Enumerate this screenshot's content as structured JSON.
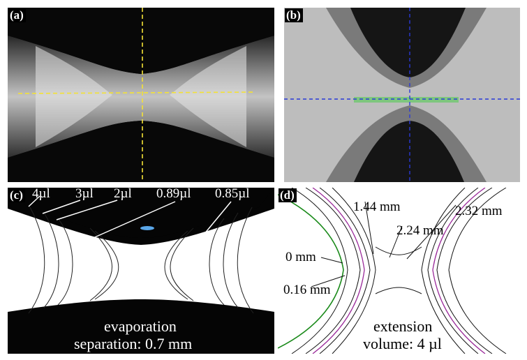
{
  "panels": {
    "a": {
      "tag": "(a)",
      "crosshair_color": "#f4e236"
    },
    "b": {
      "tag": "(b)",
      "crosshair_color": "#2a3ad8"
    },
    "c": {
      "tag": "(c)",
      "volume_labels": [
        "4µl",
        "3µl",
        "2µl",
        "0.89µl",
        "0.85µl"
      ],
      "caption_line1": "evaporation",
      "caption_line2": "separation: 0.7 mm"
    },
    "d": {
      "tag": "(d)",
      "distance_labels": [
        "1.44 mm",
        "2.32 mm",
        "2.24 mm",
        "0 mm",
        "0.16 mm"
      ],
      "caption_line1": "extension",
      "caption_line2": "volume: 4 µl",
      "trace_colors": [
        "#1a8a1a",
        "#9a2a9a"
      ]
    }
  }
}
